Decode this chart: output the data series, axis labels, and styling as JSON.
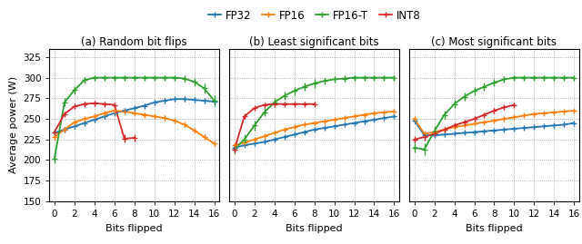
{
  "title_a": "(a) Random bit flips",
  "title_b": "(b) Least significant bits",
  "title_c": "(c) Most significant bits",
  "xlabel": "Bits flipped",
  "ylabel": "Average power (W)",
  "ylim": [
    150,
    335
  ],
  "yticks": [
    150,
    175,
    200,
    225,
    250,
    275,
    300,
    325
  ],
  "xlim": [
    -0.5,
    16.5
  ],
  "xticks": [
    0,
    2,
    4,
    6,
    8,
    10,
    12,
    14,
    16
  ],
  "colors": {
    "FP32": "#1f77b4",
    "FP16": "#ff7f0e",
    "FP16-T": "#2ca02c",
    "INT8": "#d62728"
  },
  "legend_labels": [
    "FP32",
    "FP16",
    "FP16-T",
    "INT8"
  ],
  "panel_a": {
    "FP32": {
      "x": [
        0,
        1,
        2,
        3,
        4,
        5,
        6,
        7,
        8,
        9,
        10,
        11,
        12,
        13,
        14,
        15,
        16
      ],
      "y": [
        233,
        237,
        241,
        245,
        249,
        253,
        257,
        260,
        263,
        266,
        270,
        272,
        274,
        274,
        273,
        272,
        271
      ],
      "yerr": [
        3,
        3,
        3,
        3,
        3,
        3,
        3,
        3,
        3,
        3,
        3,
        3,
        3,
        3,
        3,
        3,
        3
      ]
    },
    "FP16": {
      "x": [
        0,
        1,
        2,
        3,
        4,
        5,
        6,
        7,
        8,
        9,
        10,
        11,
        12,
        13,
        14,
        15,
        16
      ],
      "y": [
        228,
        237,
        246,
        250,
        253,
        257,
        260,
        259,
        257,
        255,
        253,
        251,
        248,
        243,
        236,
        228,
        220
      ],
      "yerr": [
        3,
        3,
        3,
        3,
        3,
        3,
        3,
        3,
        3,
        3,
        3,
        3,
        3,
        3,
        3,
        3,
        3
      ]
    },
    "FP16-T": {
      "x": [
        0,
        1,
        2,
        3,
        4,
        5,
        6,
        7,
        8,
        9,
        10,
        11,
        12,
        13,
        14,
        15,
        16
      ],
      "y": [
        202,
        270,
        285,
        297,
        300,
        300,
        300,
        300,
        300,
        300,
        300,
        300,
        300,
        299,
        295,
        287,
        272
      ],
      "yerr": [
        6,
        5,
        5,
        4,
        3,
        3,
        3,
        3,
        3,
        3,
        3,
        3,
        3,
        4,
        5,
        6,
        7
      ]
    },
    "INT8": {
      "x": [
        0,
        1,
        2,
        3,
        4,
        5,
        6,
        7,
        8
      ],
      "y": [
        234,
        256,
        265,
        268,
        269,
        268,
        267,
        226,
        227
      ],
      "yerr": [
        4,
        3,
        3,
        3,
        3,
        3,
        3,
        5,
        4
      ]
    }
  },
  "panel_b": {
    "FP32": {
      "x": [
        0,
        1,
        2,
        3,
        4,
        5,
        6,
        7,
        8,
        9,
        10,
        11,
        12,
        13,
        14,
        15,
        16
      ],
      "y": [
        215,
        218,
        220,
        222,
        225,
        228,
        231,
        234,
        237,
        239,
        241,
        243,
        245,
        247,
        249,
        251,
        253
      ],
      "yerr": [
        2,
        2,
        2,
        2,
        2,
        2,
        2,
        2,
        2,
        2,
        2,
        2,
        2,
        2,
        2,
        2,
        2
      ]
    },
    "FP16": {
      "x": [
        0,
        1,
        2,
        3,
        4,
        5,
        6,
        7,
        8,
        9,
        10,
        11,
        12,
        13,
        14,
        15,
        16
      ],
      "y": [
        218,
        221,
        225,
        229,
        233,
        237,
        240,
        243,
        245,
        247,
        249,
        251,
        253,
        255,
        257,
        258,
        259
      ],
      "yerr": [
        2,
        2,
        2,
        2,
        2,
        2,
        2,
        2,
        2,
        2,
        2,
        2,
        2,
        2,
        2,
        2,
        2
      ]
    },
    "FP16-T": {
      "x": [
        0,
        1,
        2,
        3,
        4,
        5,
        6,
        7,
        8,
        9,
        10,
        11,
        12,
        13,
        14,
        15,
        16
      ],
      "y": [
        213,
        225,
        242,
        258,
        270,
        278,
        284,
        289,
        293,
        296,
        298,
        299,
        300,
        300,
        300,
        300,
        300
      ],
      "yerr": [
        6,
        6,
        6,
        5,
        5,
        5,
        5,
        5,
        5,
        4,
        4,
        4,
        3,
        3,
        3,
        3,
        3
      ]
    },
    "INT8": {
      "x": [
        0,
        1,
        2,
        3,
        4,
        5,
        6,
        7,
        8
      ],
      "y": [
        213,
        253,
        263,
        267,
        268,
        268,
        268,
        268,
        268
      ],
      "yerr": [
        4,
        3,
        3,
        3,
        3,
        3,
        3,
        3,
        3
      ]
    }
  },
  "panel_c": {
    "FP32": {
      "x": [
        0,
        1,
        2,
        3,
        4,
        5,
        6,
        7,
        8,
        9,
        10,
        11,
        12,
        13,
        14,
        15,
        16
      ],
      "y": [
        248,
        230,
        230,
        231,
        232,
        233,
        234,
        235,
        236,
        237,
        238,
        239,
        240,
        241,
        242,
        243,
        245
      ],
      "yerr": [
        3,
        3,
        2,
        2,
        2,
        2,
        2,
        2,
        2,
        2,
        2,
        2,
        2,
        2,
        2,
        2,
        2
      ]
    },
    "FP16": {
      "x": [
        0,
        1,
        2,
        3,
        4,
        5,
        6,
        7,
        8,
        9,
        10,
        11,
        12,
        13,
        14,
        15,
        16
      ],
      "y": [
        250,
        232,
        234,
        237,
        240,
        242,
        244,
        246,
        248,
        250,
        252,
        254,
        256,
        257,
        258,
        259,
        260
      ],
      "yerr": [
        3,
        3,
        2,
        2,
        2,
        2,
        2,
        2,
        2,
        2,
        2,
        2,
        2,
        2,
        2,
        2,
        2
      ]
    },
    "FP16-T": {
      "x": [
        0,
        1,
        2,
        3,
        4,
        5,
        6,
        7,
        8,
        9,
        10,
        11,
        12,
        13,
        14,
        15,
        16
      ],
      "y": [
        215,
        213,
        235,
        255,
        268,
        277,
        284,
        289,
        294,
        298,
        300,
        300,
        300,
        300,
        300,
        300,
        300
      ],
      "yerr": [
        6,
        7,
        6,
        5,
        5,
        5,
        5,
        5,
        4,
        4,
        3,
        3,
        3,
        3,
        3,
        3,
        3
      ]
    },
    "INT8": {
      "x": [
        0,
        1,
        2,
        3,
        4,
        5,
        6,
        7,
        8,
        9,
        10
      ],
      "y": [
        225,
        228,
        232,
        237,
        242,
        246,
        250,
        255,
        260,
        264,
        267
      ],
      "yerr": [
        4,
        4,
        3,
        3,
        3,
        3,
        3,
        3,
        3,
        3,
        3
      ]
    }
  }
}
